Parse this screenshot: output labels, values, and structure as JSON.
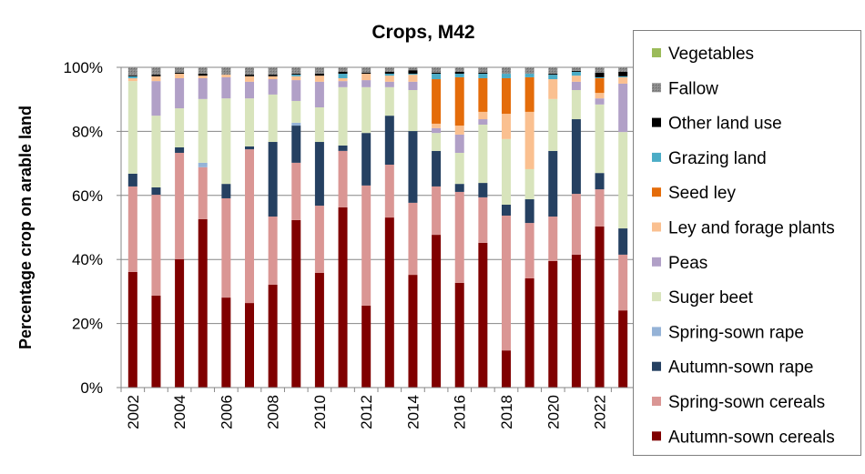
{
  "chart_data": {
    "type": "bar",
    "stacked": true,
    "title": "Crops, M42",
    "xlabel": "",
    "ylabel": "Percentage crop on arable land",
    "ylim": [
      0,
      100
    ],
    "yticks": [
      "0%",
      "20%",
      "40%",
      "60%",
      "80%",
      "100%"
    ],
    "grid": "horizontal",
    "legend_position": "right",
    "categories": [
      "2002",
      "2003",
      "2004",
      "2005",
      "2006",
      "2007",
      "2008",
      "2009",
      "2010",
      "2011",
      "2012",
      "2013",
      "2014",
      "2015",
      "2016",
      "2017",
      "2018",
      "2019",
      "2020",
      "2021",
      "2022",
      "2023"
    ],
    "xtick_labels": [
      "2002",
      "",
      "2004",
      "",
      "2006",
      "",
      "2008",
      "",
      "2010",
      "",
      "2012",
      "",
      "2014",
      "",
      "2016",
      "",
      "2018",
      "",
      "2020",
      "",
      "2022",
      ""
    ],
    "series": [
      {
        "name": "Autumn-sown cereals",
        "color": "#800000",
        "values": [
          36.1,
          28.7,
          40.1,
          52.6,
          28.1,
          26.4,
          32.1,
          52.3,
          35.8,
          56.3,
          25.6,
          53.1,
          35.2,
          47.7,
          32.7,
          45.2,
          11.6,
          34.1,
          39.5,
          41.5,
          50.3,
          24.1
        ]
      },
      {
        "name": "Spring-sown cereals",
        "color": "#DA9694",
        "values": [
          26.7,
          31.5,
          33.2,
          16.2,
          31.0,
          48.0,
          21.3,
          17.9,
          21.0,
          17.6,
          37.5,
          16.5,
          22.5,
          15.1,
          28.4,
          14.2,
          42.1,
          17.3,
          13.9,
          19.0,
          11.6,
          17.4
        ]
      },
      {
        "name": "Autumn-sown rape",
        "color": "#254061",
        "values": [
          4.0,
          2.3,
          1.7,
          0,
          4.5,
          0.9,
          23.3,
          11.6,
          19.9,
          1.7,
          16.4,
          15.3,
          22.4,
          11.1,
          2.5,
          4.5,
          3.4,
          7.4,
          20.5,
          23.3,
          5.1,
          8.2
        ]
      },
      {
        "name": "Spring-sown rape",
        "color": "#95B3D7",
        "values": [
          0,
          0,
          0,
          1.4,
          0,
          0,
          0,
          0.9,
          0,
          0,
          0,
          0,
          0,
          0,
          0,
          0,
          0,
          0,
          0,
          0,
          0,
          0
        ]
      },
      {
        "name": "Suger beet",
        "color": "#D8E4BC",
        "values": [
          28.9,
          22.4,
          12.2,
          19.9,
          26.7,
          15.0,
          14.8,
          6.8,
          10.8,
          18.2,
          14.3,
          8.9,
          12.8,
          5.6,
          9.7,
          18.2,
          20.5,
          9.4,
          16.2,
          9.1,
          21.4,
          30.1
        ]
      },
      {
        "name": "Peas",
        "color": "#B1A0C7",
        "values": [
          0,
          10.8,
          9.4,
          6.5,
          6.6,
          5.2,
          4.8,
          6.5,
          8.0,
          1.9,
          2.2,
          1.7,
          2.6,
          1.5,
          5.7,
          1.7,
          0,
          0,
          0,
          2.6,
          1.9,
          15.1
        ]
      },
      {
        "name": "Ley and forage plants",
        "color": "#FAC090",
        "values": [
          0.9,
          1.5,
          1.4,
          0.8,
          0.8,
          1.7,
          0.9,
          1.2,
          1.9,
          0.9,
          2.0,
          1.9,
          2.2,
          1.4,
          2.8,
          2.3,
          7.9,
          17.9,
          6.2,
          1.9,
          1.7,
          2.0
        ]
      },
      {
        "name": "Seed ley",
        "color": "#E46C0A",
        "values": [
          0,
          0,
          0,
          0,
          0,
          0,
          0,
          0,
          0,
          0,
          0,
          0,
          0,
          13.9,
          15.1,
          10.5,
          11.1,
          10.8,
          0,
          0,
          4.6,
          0
        ]
      },
      {
        "name": "Grazing land",
        "color": "#4BACC6",
        "values": [
          0.6,
          0,
          0,
          0,
          0,
          0,
          0,
          0.5,
          0,
          1.4,
          0,
          0.6,
          0.3,
          1.7,
          1.1,
          1.4,
          1.4,
          1.1,
          1.4,
          1.2,
          0.3,
          0.3
        ]
      },
      {
        "name": "Other land use",
        "color": "#000000",
        "values": [
          0.3,
          0.5,
          0.3,
          0.6,
          0,
          0.5,
          0.5,
          0.3,
          0.6,
          0.6,
          0.3,
          0.6,
          1.1,
          0.3,
          0.6,
          0.3,
          0,
          0,
          0.3,
          0.3,
          1.4,
          1.4
        ]
      },
      {
        "name": "Fallow",
        "color": "#808080",
        "values": [
          2.6,
          2.3,
          1.7,
          2.0,
          2.3,
          2.3,
          2.3,
          2.0,
          2.0,
          1.4,
          1.7,
          1.4,
          0.9,
          1.7,
          1.4,
          1.7,
          2.0,
          2.0,
          2.0,
          1.1,
          1.7,
          1.4
        ]
      },
      {
        "name": "Vegetables",
        "color": "#9BBB59",
        "values": [
          0,
          0,
          0,
          0,
          0,
          0,
          0,
          0,
          0,
          0,
          0,
          0,
          0,
          0,
          0,
          0,
          0,
          0,
          0,
          0,
          0,
          0
        ]
      }
    ]
  }
}
